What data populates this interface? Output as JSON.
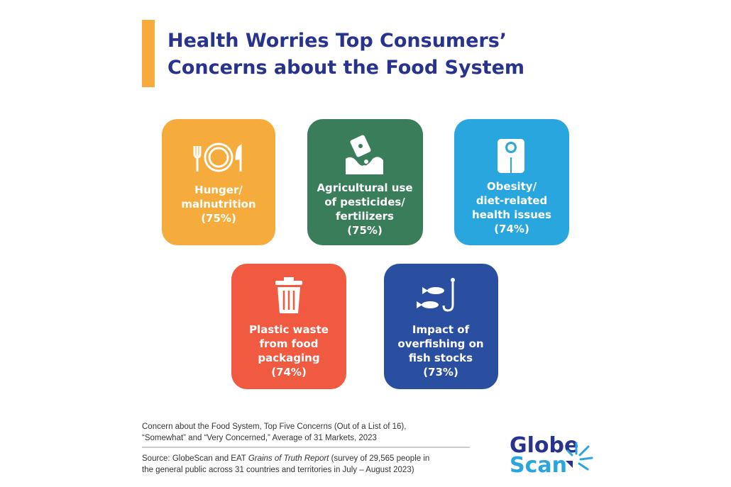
{
  "header": {
    "title_lines": [
      "Health Worries Top Consumers’",
      "Concerns about the Food System"
    ]
  },
  "cards": [
    {
      "lines": [
        "Hunger/",
        "malnutrition"
      ],
      "percent": "(75%)"
    },
    {
      "lines": [
        "Agricultural use",
        "of pesticides/",
        "fertilizers"
      ],
      "percent": "(75%)"
    },
    {
      "lines": [
        "Obesity/",
        "diet-related",
        "health issues"
      ],
      "percent": "(74%)"
    },
    {
      "lines": [
        "Plastic waste",
        "from food",
        "packaging"
      ],
      "percent": "(74%)"
    },
    {
      "lines": [
        "Impact of",
        "overfishing on",
        "fish stocks"
      ],
      "percent": "(73%)"
    }
  ],
  "footnote": {
    "lines": [
      "Concern about the Food System, Top Five Concerns (Out of a List of 16),",
      "“Somewhat” and “Very Concerned,” Average of 31 Markets, 2023"
    ]
  },
  "source": {
    "line1": [
      "Source: GlobeScan and EAT ",
      "Grains of Truth Report",
      " (survey of 29,565 people in"
    ],
    "line2": "the general public across 31 countries and territories in July – August 2023)"
  },
  "logo": {
    "top": "Globe",
    "bottom": "Scan"
  }
}
